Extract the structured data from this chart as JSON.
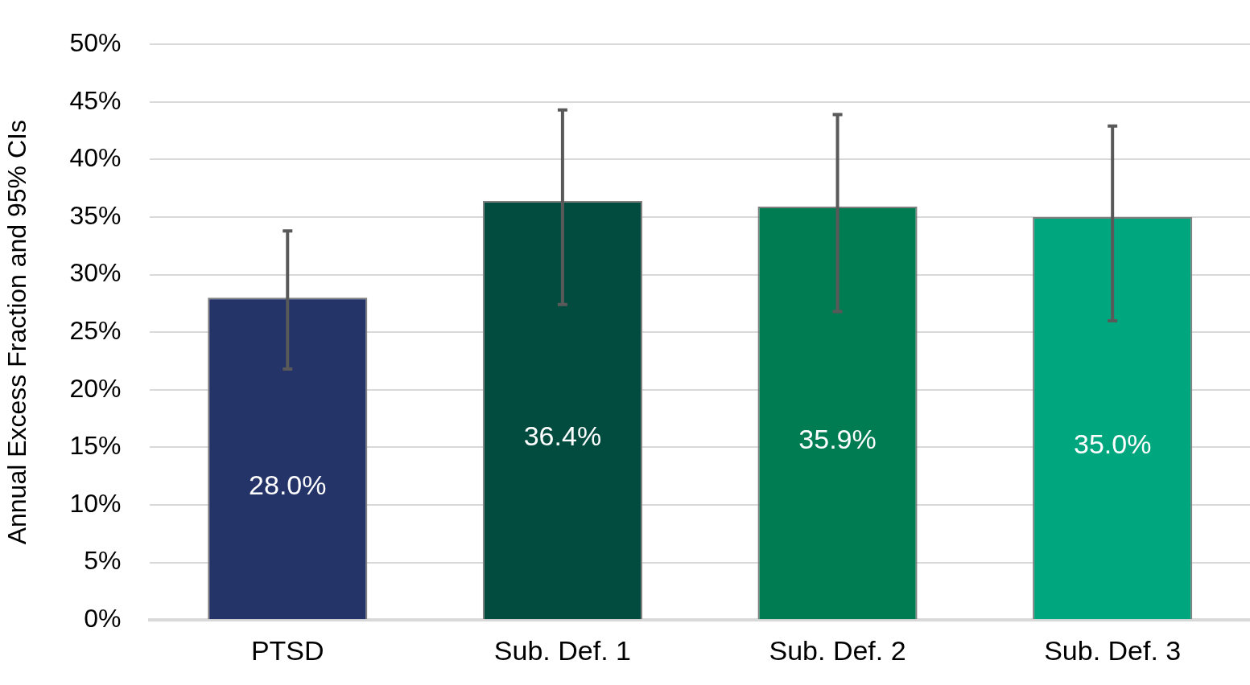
{
  "chart_data": {
    "type": "bar",
    "ylabel": "Annual Excess Fraction and 95% CIs",
    "categories": [
      "PTSD",
      "Sub. Def. 1",
      "Sub. Def. 2",
      "Sub. Def. 3"
    ],
    "values": [
      28.0,
      36.4,
      35.9,
      35.0
    ],
    "colors": [
      "#243368",
      "#024c3f",
      "#007c53",
      "#00a67e"
    ],
    "errors": [
      [
        21.8,
        33.8
      ],
      [
        27.4,
        44.3
      ],
      [
        26.8,
        43.9
      ],
      [
        26.0,
        42.9
      ]
    ],
    "value_labels": [
      "28.0%",
      "36.4%",
      "35.9%",
      "35.0%"
    ],
    "ylim": [
      0,
      50
    ],
    "yticks": [
      {
        "value": 0,
        "label": "0%"
      },
      {
        "value": 5,
        "label": "5%"
      },
      {
        "value": 10,
        "label": "10%"
      },
      {
        "value": 15,
        "label": "15%"
      },
      {
        "value": 20,
        "label": "20%"
      },
      {
        "value": 25,
        "label": "25%"
      },
      {
        "value": 30,
        "label": "30%"
      },
      {
        "value": 35,
        "label": "35%"
      },
      {
        "value": 40,
        "label": "40%"
      },
      {
        "value": 45,
        "label": "45%"
      },
      {
        "value": 50,
        "label": "50%"
      }
    ],
    "grid": "y",
    "legend": false
  }
}
